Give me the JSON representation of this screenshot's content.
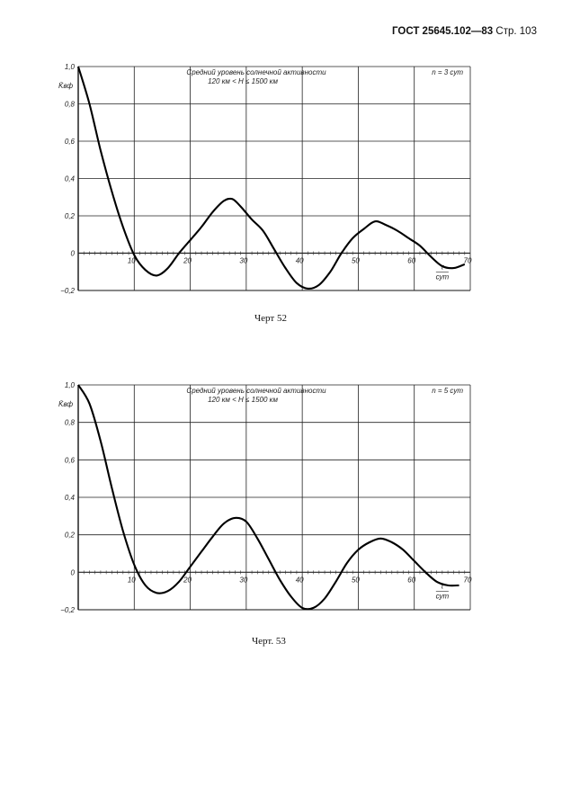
{
  "page": {
    "header_doc": "ГОСТ 25645.102—83",
    "header_page": "Стр. 103"
  },
  "chart_data": [
    {
      "type": "line",
      "caption": "Черт 52",
      "title_line1": "Средний уровень солнечной активности",
      "title_line2": "120 км < H ≤ 1500 км",
      "legend": "n = 3 сут",
      "ylabel": "K̄вф",
      "xlabel_num": "τ",
      "xlabel_den": "сут",
      "xlim": [
        0,
        70
      ],
      "ylim": [
        -0.2,
        1.0
      ],
      "x_ticks": [
        10,
        20,
        30,
        40,
        50,
        60,
        70
      ],
      "y_ticks": [
        -0.2,
        0,
        0.2,
        0.4,
        0.6,
        0.8,
        1.0
      ],
      "x_tick_labels": [
        "10",
        "20",
        "30",
        "40",
        "50",
        "60",
        "70"
      ],
      "y_tick_labels": [
        "−0,2",
        "0",
        "0,2",
        "0,4",
        "0,6",
        "0,8",
        "1,0"
      ],
      "x": [
        0,
        2,
        4,
        6,
        8,
        10,
        12,
        14,
        16,
        18,
        20,
        22,
        24,
        26,
        27.5,
        29,
        31,
        33,
        35,
        37,
        39,
        41,
        43,
        45,
        47,
        49,
        51,
        53,
        55,
        57,
        59,
        61,
        63,
        65,
        67,
        69
      ],
      "y": [
        1.0,
        0.8,
        0.55,
        0.33,
        0.14,
        -0.01,
        -0.09,
        -0.12,
        -0.08,
        0.0,
        0.07,
        0.14,
        0.22,
        0.28,
        0.29,
        0.25,
        0.18,
        0.12,
        0.02,
        -0.08,
        -0.16,
        -0.19,
        -0.17,
        -0.1,
        0.0,
        0.08,
        0.13,
        0.17,
        0.15,
        0.12,
        0.08,
        0.04,
        -0.02,
        -0.07,
        -0.08,
        -0.06
      ]
    },
    {
      "type": "line",
      "caption": "Черт. 53",
      "title_line1": "Средний уровень солнечной активности",
      "title_line2": "120 км < H ≤ 1500 км",
      "legend": "n = 5 сут",
      "ylabel": "K̄вф",
      "xlabel_num": "τ",
      "xlabel_den": "сут",
      "xlim": [
        0,
        70
      ],
      "ylim": [
        -0.2,
        1.0
      ],
      "x_ticks": [
        10,
        20,
        30,
        40,
        50,
        60,
        70
      ],
      "y_ticks": [
        -0.2,
        0,
        0.2,
        0.4,
        0.6,
        0.8,
        1.0
      ],
      "x_tick_labels": [
        "10",
        "20",
        "30",
        "40",
        "50",
        "60",
        "70"
      ],
      "y_tick_labels": [
        "−0,2",
        "0",
        "0,2",
        "0,4",
        "0,6",
        "0,8",
        "1,0"
      ],
      "x": [
        0,
        2,
        4,
        6,
        8,
        10,
        12,
        14,
        16,
        18,
        20,
        22,
        24,
        26,
        28,
        30,
        32,
        34,
        36,
        38,
        40,
        42,
        44,
        46,
        48,
        50,
        52,
        54,
        56,
        58,
        60,
        62,
        64,
        66,
        68
      ],
      "y": [
        1.0,
        0.9,
        0.7,
        0.45,
        0.22,
        0.04,
        -0.07,
        -0.11,
        -0.1,
        -0.05,
        0.03,
        0.11,
        0.19,
        0.26,
        0.29,
        0.27,
        0.18,
        0.07,
        -0.04,
        -0.13,
        -0.19,
        -0.19,
        -0.14,
        -0.05,
        0.05,
        0.12,
        0.16,
        0.18,
        0.16,
        0.12,
        0.06,
        0.0,
        -0.05,
        -0.07,
        -0.07
      ]
    }
  ]
}
